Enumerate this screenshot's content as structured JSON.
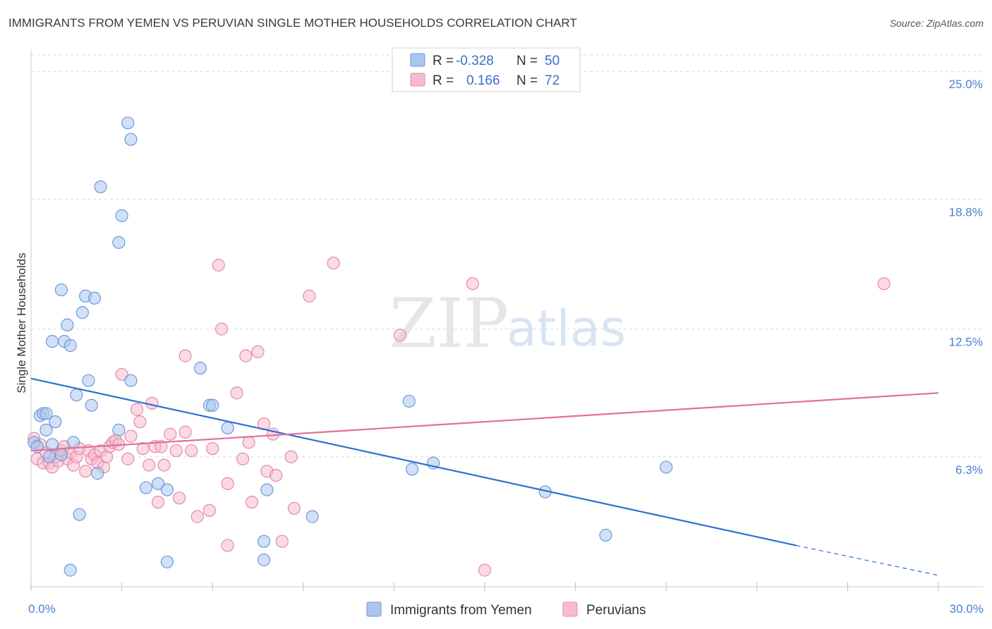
{
  "title": "IMMIGRANTS FROM YEMEN VS PERUVIAN SINGLE MOTHER HOUSEHOLDS CORRELATION CHART",
  "source": "Source: ZipAtlas.com",
  "watermark": {
    "zip": "ZIP",
    "atlas": "atlas"
  },
  "colors": {
    "blue_fill": "#a9c6ee",
    "blue_stroke": "#6f9ad8",
    "blue_line": "#2f6fcf",
    "pink_fill": "#f6bcd0",
    "pink_stroke": "#e48aaa",
    "pink_line": "#e0709a",
    "grid": "#d9d9d9",
    "tick_text": "#4a7fd0"
  },
  "legend": {
    "rows": [
      {
        "r_label": "R =",
        "r_value": "-0.328",
        "n_label": "N =",
        "n_value": "50"
      },
      {
        "r_label": "R =",
        "r_value": " 0.166",
        "n_label": "N =",
        "n_value": "72"
      }
    ]
  },
  "chart_data": {
    "type": "scatter",
    "title": "IMMIGRANTS FROM YEMEN VS PERUVIAN SINGLE MOTHER HOUSEHOLDS CORRELATION CHART",
    "xlabel": "",
    "ylabel": "Single Mother Households",
    "xlim": [
      0,
      30
    ],
    "ylim": [
      0,
      26
    ],
    "x_tick_labels": [
      {
        "value": 0,
        "label": "0.0%"
      },
      {
        "value": 30,
        "label": "30.0%"
      }
    ],
    "y_tick_labels": [
      {
        "value": 6.3,
        "label": "6.3%"
      },
      {
        "value": 12.5,
        "label": "12.5%"
      },
      {
        "value": 18.8,
        "label": "18.8%"
      },
      {
        "value": 25.0,
        "label": "25.0%"
      }
    ],
    "grid": true,
    "legend_position": "top-center",
    "series": [
      {
        "name": "Immigrants from Yemen",
        "color": "#a9c6ee",
        "points": [
          [
            0.1,
            7.0
          ],
          [
            0.2,
            6.8
          ],
          [
            0.3,
            8.3
          ],
          [
            0.4,
            8.4
          ],
          [
            0.5,
            8.4
          ],
          [
            0.5,
            7.6
          ],
          [
            0.6,
            6.3
          ],
          [
            0.7,
            6.9
          ],
          [
            0.7,
            11.9
          ],
          [
            0.8,
            8.0
          ],
          [
            1.0,
            14.4
          ],
          [
            1.0,
            6.4
          ],
          [
            1.1,
            11.9
          ],
          [
            1.2,
            12.7
          ],
          [
            1.3,
            11.7
          ],
          [
            1.4,
            7.0
          ],
          [
            1.5,
            9.3
          ],
          [
            1.6,
            3.5
          ],
          [
            1.7,
            13.3
          ],
          [
            1.8,
            14.1
          ],
          [
            1.9,
            10.0
          ],
          [
            2.0,
            8.8
          ],
          [
            2.1,
            14.0
          ],
          [
            2.2,
            5.5
          ],
          [
            2.3,
            19.4
          ],
          [
            2.9,
            7.6
          ],
          [
            2.9,
            16.7
          ],
          [
            3.0,
            18.0
          ],
          [
            3.2,
            22.5
          ],
          [
            3.3,
            21.7
          ],
          [
            3.3,
            10.0
          ],
          [
            3.8,
            4.8
          ],
          [
            4.2,
            5.0
          ],
          [
            4.5,
            4.7
          ],
          [
            4.5,
            1.2
          ],
          [
            5.6,
            10.6
          ],
          [
            5.9,
            8.8
          ],
          [
            6.0,
            8.8
          ],
          [
            6.5,
            7.7
          ],
          [
            7.7,
            2.2
          ],
          [
            7.8,
            4.7
          ],
          [
            7.7,
            1.3
          ],
          [
            9.3,
            3.4
          ],
          [
            12.5,
            9.0
          ],
          [
            12.6,
            5.7
          ],
          [
            13.3,
            6.0
          ],
          [
            17.0,
            4.6
          ],
          [
            19.0,
            2.5
          ],
          [
            21.0,
            5.8
          ],
          [
            1.3,
            0.8
          ]
        ]
      },
      {
        "name": "Peruvians",
        "color": "#f6bcd0",
        "points": [
          [
            0.1,
            7.2
          ],
          [
            0.2,
            6.2
          ],
          [
            0.3,
            6.9
          ],
          [
            0.4,
            6.0
          ],
          [
            0.5,
            6.5
          ],
          [
            0.6,
            6.0
          ],
          [
            0.7,
            5.8
          ],
          [
            0.8,
            6.3
          ],
          [
            0.9,
            6.1
          ],
          [
            1.0,
            6.6
          ],
          [
            1.1,
            6.8
          ],
          [
            1.2,
            6.2
          ],
          [
            1.3,
            6.5
          ],
          [
            1.4,
            5.9
          ],
          [
            1.5,
            6.3
          ],
          [
            1.6,
            6.7
          ],
          [
            1.8,
            5.6
          ],
          [
            1.9,
            6.6
          ],
          [
            2.0,
            6.2
          ],
          [
            2.1,
            6.4
          ],
          [
            2.2,
            6.0
          ],
          [
            2.3,
            6.6
          ],
          [
            2.4,
            5.8
          ],
          [
            2.5,
            6.3
          ],
          [
            2.6,
            6.8
          ],
          [
            2.7,
            7.0
          ],
          [
            2.8,
            7.1
          ],
          [
            2.9,
            6.9
          ],
          [
            3.0,
            10.3
          ],
          [
            3.2,
            6.2
          ],
          [
            3.3,
            7.3
          ],
          [
            3.5,
            8.6
          ],
          [
            3.6,
            8.0
          ],
          [
            3.7,
            6.7
          ],
          [
            3.9,
            5.9
          ],
          [
            4.0,
            8.9
          ],
          [
            4.1,
            6.8
          ],
          [
            4.2,
            4.1
          ],
          [
            4.3,
            6.8
          ],
          [
            4.4,
            5.9
          ],
          [
            4.6,
            7.4
          ],
          [
            4.8,
            6.6
          ],
          [
            4.9,
            4.3
          ],
          [
            5.1,
            7.5
          ],
          [
            5.1,
            11.2
          ],
          [
            5.3,
            6.6
          ],
          [
            5.5,
            3.4
          ],
          [
            5.9,
            3.7
          ],
          [
            6.0,
            6.7
          ],
          [
            6.2,
            15.6
          ],
          [
            6.3,
            12.5
          ],
          [
            6.5,
            5.0
          ],
          [
            6.5,
            2.0
          ],
          [
            6.8,
            9.4
          ],
          [
            7.0,
            6.2
          ],
          [
            7.1,
            11.2
          ],
          [
            7.2,
            7.0
          ],
          [
            7.3,
            4.1
          ],
          [
            7.5,
            11.4
          ],
          [
            7.7,
            7.9
          ],
          [
            7.8,
            5.6
          ],
          [
            8.0,
            7.4
          ],
          [
            8.1,
            5.4
          ],
          [
            8.3,
            2.2
          ],
          [
            8.6,
            6.3
          ],
          [
            8.7,
            3.8
          ],
          [
            9.2,
            14.1
          ],
          [
            10.0,
            15.7
          ],
          [
            12.2,
            12.2
          ],
          [
            14.6,
            14.7
          ],
          [
            15.0,
            0.8
          ],
          [
            28.2,
            14.7
          ]
        ]
      }
    ],
    "trend_lines": [
      {
        "series": "Immigrants from Yemen",
        "x_start": 0,
        "y_start": 10.1,
        "x_end": 25.3,
        "y_end": 2.0,
        "dashed_to_x": 30,
        "dashed_to_y": 0.55
      },
      {
        "series": "Peruvians",
        "x_start": 0,
        "y_start": 6.6,
        "x_end": 30,
        "y_end": 9.4
      }
    ]
  }
}
